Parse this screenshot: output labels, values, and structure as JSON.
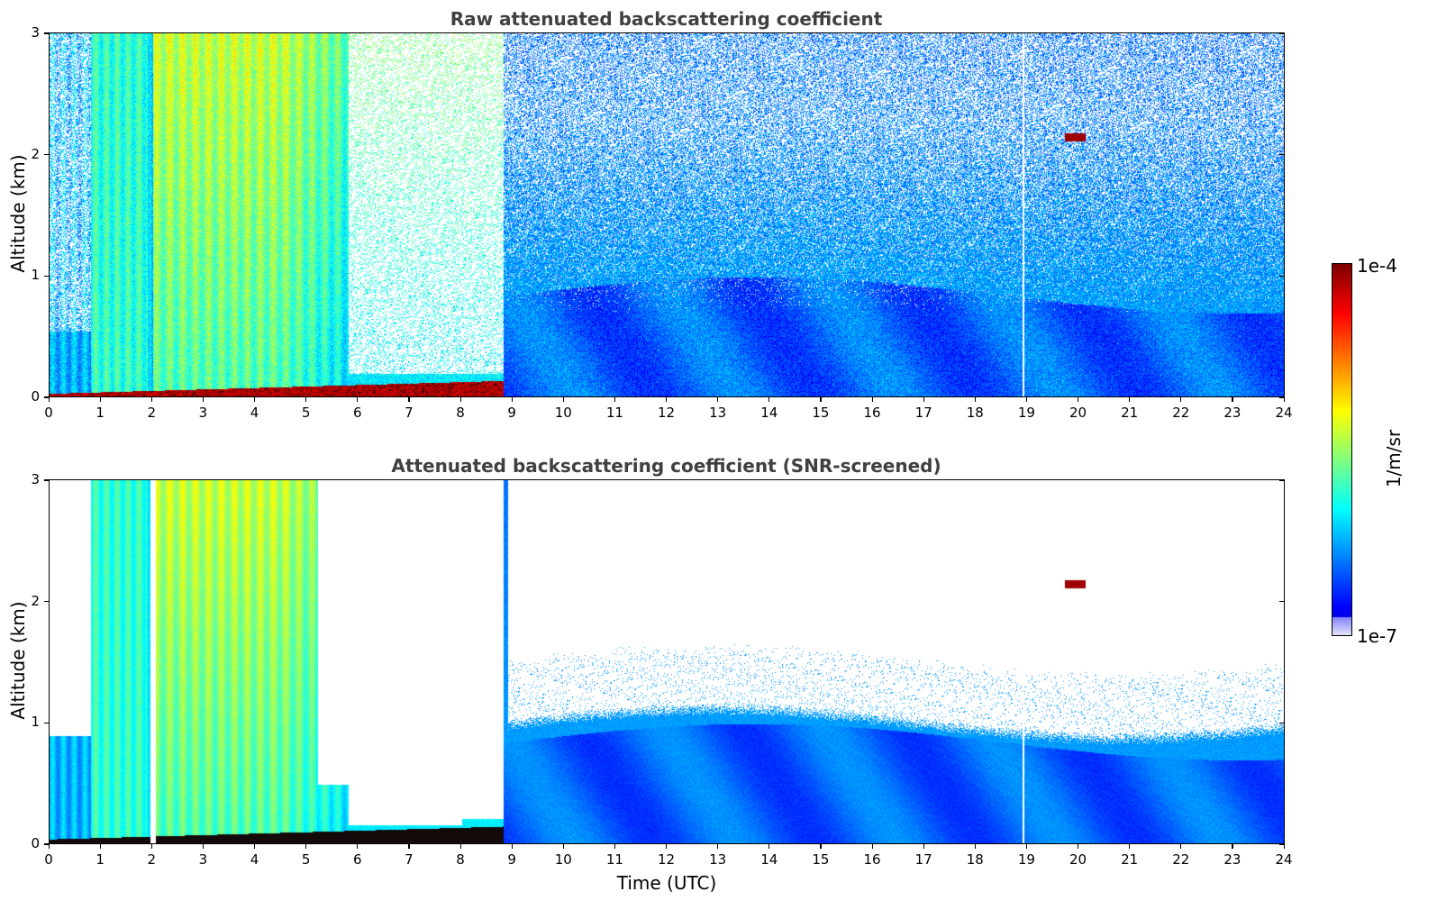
{
  "chart_data": [
    {
      "type": "heatmap",
      "title": "Raw attenuated backscattering coefficient",
      "xlabel": "",
      "ylabel": "Altitude (km)",
      "xlim": [
        0,
        24
      ],
      "ylim": [
        0,
        3
      ],
      "xticks": [
        "0",
        "1",
        "2",
        "3",
        "4",
        "5",
        "6",
        "7",
        "8",
        "9",
        "10",
        "11",
        "12",
        "13",
        "14",
        "15",
        "16",
        "17",
        "18",
        "19",
        "20",
        "21",
        "22",
        "23",
        "24"
      ],
      "yticks": [
        "0",
        "1",
        "2",
        "3"
      ],
      "features": [
        {
          "name": "surface layer",
          "time_start": 0,
          "time_end": 8.8,
          "altitude_top_km": 0.05
        },
        {
          "name": "boundary layer",
          "time_start": 8.8,
          "time_end": 24,
          "altitude_top_km": 0.9
        },
        {
          "name": "elevated feature",
          "time": 19.9,
          "altitude_km": 2.15
        }
      ]
    },
    {
      "type": "heatmap",
      "title": "Attenuated backscattering coefficient (SNR-screened)",
      "xlabel": "Time (UTC)",
      "ylabel": "Altitude (km)",
      "xlim": [
        0,
        24
      ],
      "ylim": [
        0,
        3
      ],
      "xticks": [
        "0",
        "1",
        "2",
        "3",
        "4",
        "5",
        "6",
        "7",
        "8",
        "9",
        "10",
        "11",
        "12",
        "13",
        "14",
        "15",
        "16",
        "17",
        "18",
        "19",
        "20",
        "21",
        "22",
        "23",
        "24"
      ],
      "yticks": [
        "0",
        "1",
        "2",
        "3"
      ],
      "features": [
        {
          "name": "boundary layer top",
          "time_start": 9,
          "time_end": 24,
          "altitude_top_km": 1.05
        },
        {
          "name": "elevated feature",
          "time": 19.9,
          "altitude_km": 2.15
        }
      ]
    }
  ],
  "colorbar": {
    "label": "1/m/sr",
    "max_label": "1e-4",
    "min_label": "1e-7",
    "range": [
      1e-07,
      0.0001
    ],
    "colormap": "jet"
  }
}
